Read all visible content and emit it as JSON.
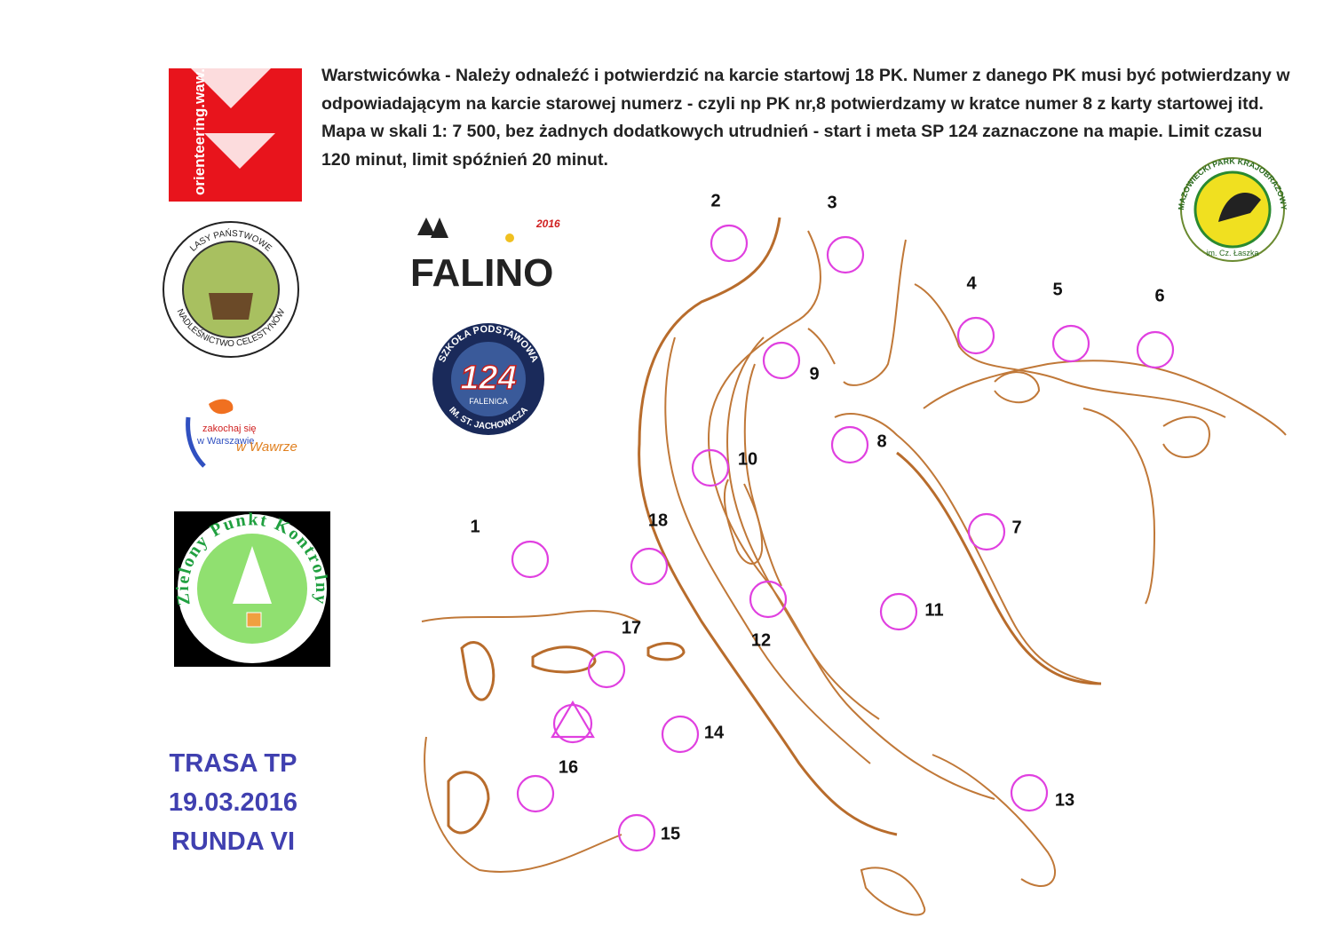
{
  "description": "Warstwicówka - Należy odnaleźć i potwierdzić na karcie startowj 18 PK. Numer z danego PK musi być potwierdzany w odpowiadającym na karcie starowej numerz - czyli np PK nr,8 potwierdzamy w kratce numer 8 z karty startowej itd. Mapa w skali 1: 7 500, bez żadnych dodatkowych utrudnień - start i meta SP 124 zaznaczone na mapie. Limit czasu 120 minut, limit spóźnień 20 minut.",
  "logos": {
    "orienteering": "orienteering.waw.pl",
    "lasy_top": "LASY PAŃSTWOWE",
    "lasy_bottom": "NADLEŚNICTWO CELESTYNÓW",
    "falino": "FALINO",
    "falino_year": "2016",
    "school_top": "SZKOŁA PODSTAWOWA",
    "school_number": "124",
    "school_middle": "FALENICA",
    "school_bottom": "IM. ST. JACHOWICZA",
    "warsaw_1": "zakochaj się",
    "warsaw_2": "w Warszawie",
    "warsaw_3": "w Wawrze",
    "zpk": "Zielony Punkt Kontrolny",
    "park": "MAZOWIECKI PARK KRAJOBRAZOWY",
    "park_sub": "im. Cz. Łaszka"
  },
  "route": {
    "name": "TRASA TP",
    "date": "19.03.2016",
    "round": "RUNDA VI"
  },
  "controls": [
    "1",
    "2",
    "3",
    "4",
    "5",
    "6",
    "7",
    "8",
    "9",
    "10",
    "11",
    "12",
    "13",
    "14",
    "15",
    "16",
    "17",
    "18"
  ]
}
